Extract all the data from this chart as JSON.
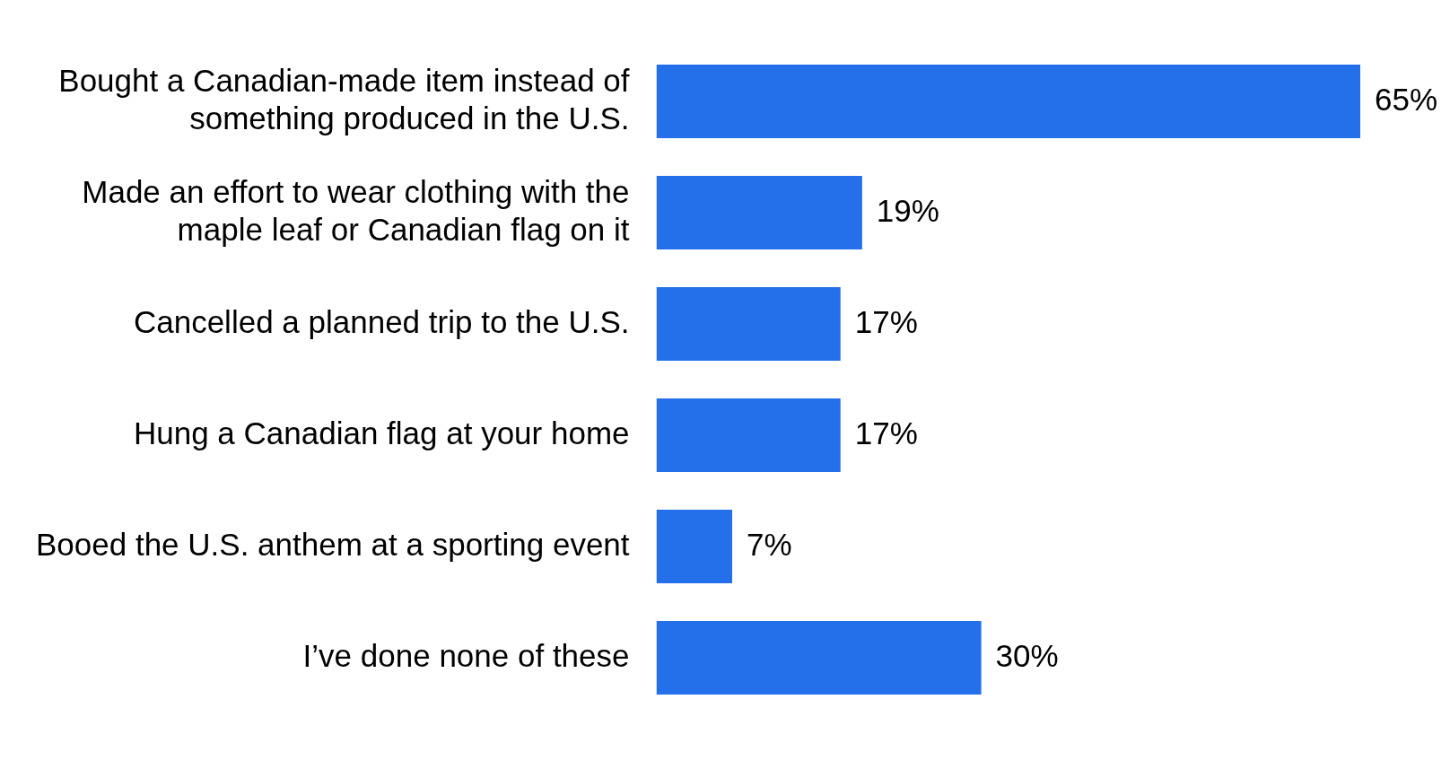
{
  "chart_data": {
    "type": "bar",
    "orientation": "horizontal",
    "categories": [
      "Bought a Canadian-made item instead of something produced in the U.S.",
      "Made an effort to wear clothing with the maple leaf or Canadian flag on it",
      "Cancelled a planned trip to the U.S.",
      "Hung a Canadian flag at your home",
      "Booed the U.S. anthem at a sporting event",
      "I’ve done none of these"
    ],
    "values": [
      65,
      19,
      17,
      17,
      7,
      30
    ],
    "value_labels": [
      "65%",
      "19%",
      "17%",
      "17%",
      "7%",
      "30%"
    ],
    "color": "#2470eb"
  }
}
